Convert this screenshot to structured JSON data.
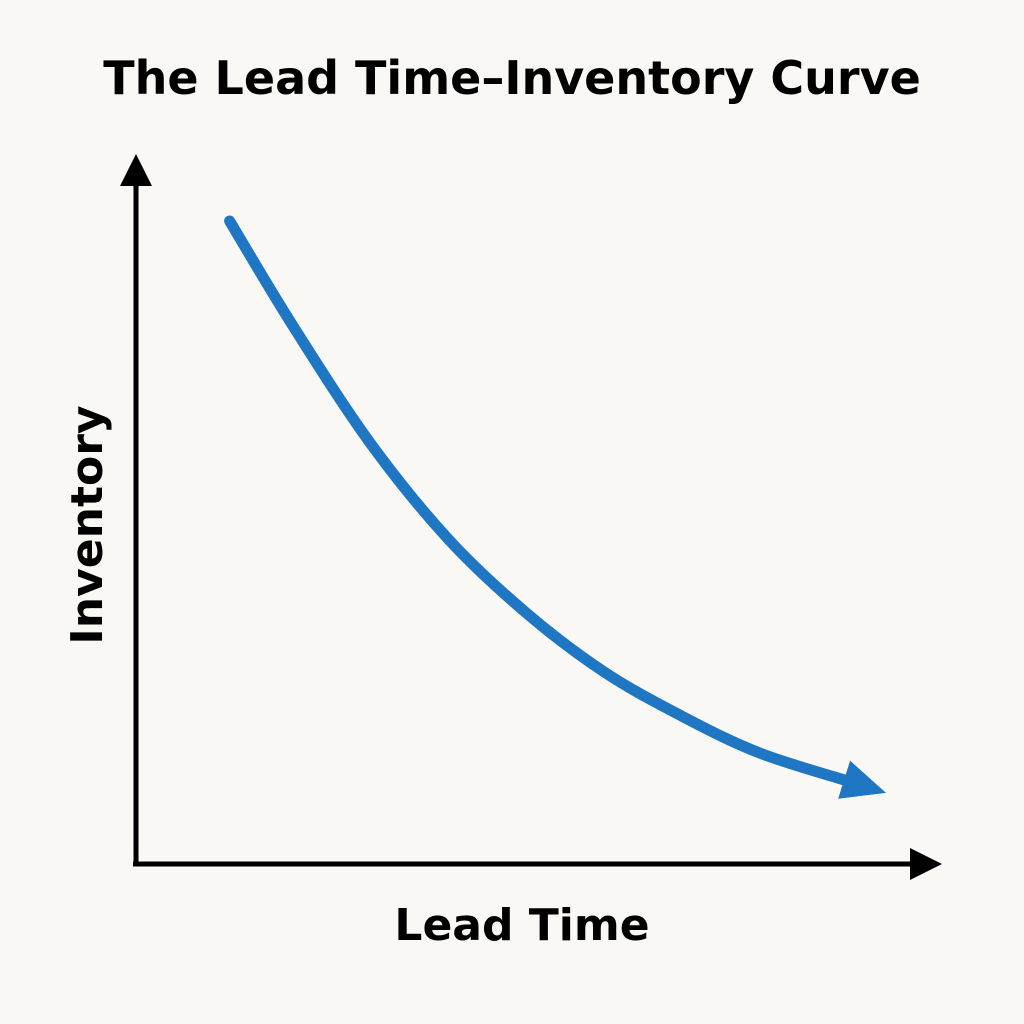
{
  "chart_data": {
    "type": "line",
    "title": "The Lead Time–Inventory Curve",
    "xlabel": "Lead Time",
    "ylabel": "Inventory",
    "axis_arrows": true,
    "ticks": false,
    "grid": false,
    "legend": "none",
    "series": [
      {
        "color": "#1f77c4",
        "end_marker": "arrow",
        "x": [
          0.12,
          0.2,
          0.3,
          0.4,
          0.5,
          0.6,
          0.7,
          0.8,
          0.92
        ],
        "y": [
          0.87,
          0.73,
          0.57,
          0.44,
          0.34,
          0.26,
          0.2,
          0.15,
          0.11
        ]
      }
    ]
  },
  "colors": {
    "background": "#f9f8f4",
    "axis": "#000000",
    "curve": "#1f77c4"
  }
}
